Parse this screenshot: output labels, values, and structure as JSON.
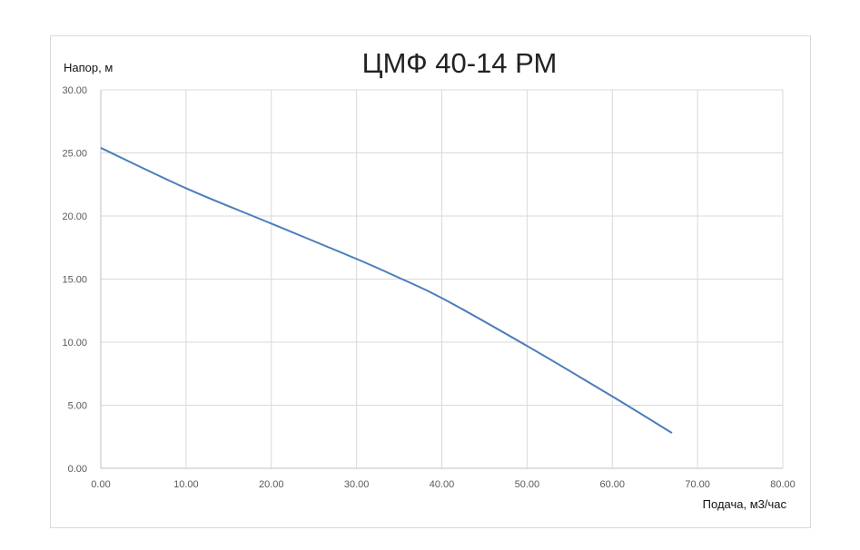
{
  "chart_data": {
    "type": "line",
    "title": "ЦМФ 40-14 РМ",
    "xlabel": "Подача, м3/час",
    "ylabel": "Напор, м",
    "xlim": [
      0,
      80
    ],
    "ylim": [
      0,
      30
    ],
    "x_ticks": [
      "0.00",
      "10.00",
      "20.00",
      "30.00",
      "40.00",
      "50.00",
      "60.00",
      "70.00",
      "80.00"
    ],
    "y_ticks": [
      "0.00",
      "5.00",
      "10.00",
      "15.00",
      "20.00",
      "25.00",
      "30.00"
    ],
    "grid": true,
    "legend": "none",
    "series": [
      {
        "color": "#4a7ebb",
        "x": [
          0,
          10,
          20,
          30,
          35,
          40,
          50,
          60,
          67
        ],
        "y": [
          25.4,
          22.2,
          19.4,
          16.6,
          15.1,
          13.5,
          9.7,
          5.7,
          2.8
        ]
      }
    ]
  }
}
